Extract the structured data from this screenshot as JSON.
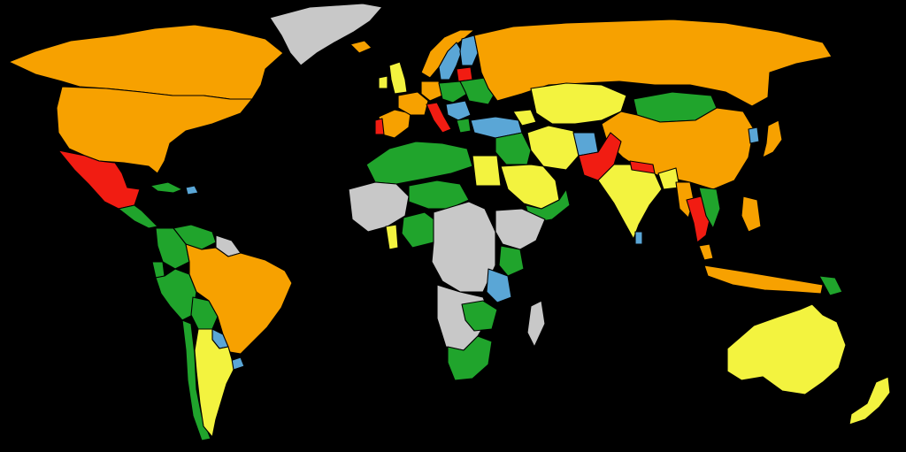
{
  "map": {
    "background_color": "#000000",
    "border_color": "#000000",
    "categories": {
      "orange": "#f7a100",
      "red": "#f11c12",
      "yellow": "#f3f33f",
      "green": "#20a42c",
      "blue": "#5aa6d6",
      "grey": "#c8c8c8"
    },
    "regions": [
      {
        "id": "canada-alaska",
        "category": "orange"
      },
      {
        "id": "usa",
        "category": "orange"
      },
      {
        "id": "greenland",
        "category": "grey"
      },
      {
        "id": "mexico",
        "category": "red"
      },
      {
        "id": "central-america",
        "category": "green"
      },
      {
        "id": "cuba",
        "category": "green"
      },
      {
        "id": "caribbean-islands",
        "category": "blue"
      },
      {
        "id": "colombia",
        "category": "green"
      },
      {
        "id": "venezuela",
        "category": "green"
      },
      {
        "id": "guianas",
        "category": "grey"
      },
      {
        "id": "ecuador",
        "category": "green"
      },
      {
        "id": "peru",
        "category": "green"
      },
      {
        "id": "brazil",
        "category": "orange"
      },
      {
        "id": "bolivia",
        "category": "green"
      },
      {
        "id": "paraguay",
        "category": "blue"
      },
      {
        "id": "uruguay",
        "category": "blue"
      },
      {
        "id": "argentina",
        "category": "yellow"
      },
      {
        "id": "chile",
        "category": "green"
      },
      {
        "id": "iceland",
        "category": "orange"
      },
      {
        "id": "uk",
        "category": "yellow"
      },
      {
        "id": "ireland",
        "category": "yellow"
      },
      {
        "id": "norway",
        "category": "orange"
      },
      {
        "id": "sweden",
        "category": "blue"
      },
      {
        "id": "finland",
        "category": "blue"
      },
      {
        "id": "baltics",
        "category": "red"
      },
      {
        "id": "russia",
        "category": "orange"
      },
      {
        "id": "iberia",
        "category": "orange"
      },
      {
        "id": "portugal",
        "category": "red"
      },
      {
        "id": "france",
        "category": "orange"
      },
      {
        "id": "central-europe",
        "category": "green"
      },
      {
        "id": "germany",
        "category": "orange"
      },
      {
        "id": "italy",
        "category": "red"
      },
      {
        "id": "balkans",
        "category": "blue"
      },
      {
        "id": "greece",
        "category": "green"
      },
      {
        "id": "eastern-europe",
        "category": "green"
      },
      {
        "id": "turkey",
        "category": "blue"
      },
      {
        "id": "caucasus",
        "category": "yellow"
      },
      {
        "id": "kazakhstan-central-asia",
        "category": "yellow"
      },
      {
        "id": "mongolia",
        "category": "green"
      },
      {
        "id": "china",
        "category": "orange"
      },
      {
        "id": "korea",
        "category": "blue"
      },
      {
        "id": "japan",
        "category": "orange"
      },
      {
        "id": "iran",
        "category": "yellow"
      },
      {
        "id": "afghanistan",
        "category": "blue"
      },
      {
        "id": "pakistan",
        "category": "red"
      },
      {
        "id": "india",
        "category": "yellow"
      },
      {
        "id": "nepal",
        "category": "red"
      },
      {
        "id": "sri-lanka",
        "category": "blue"
      },
      {
        "id": "bangladesh",
        "category": "yellow"
      },
      {
        "id": "myanmar",
        "category": "orange"
      },
      {
        "id": "thailand",
        "category": "red"
      },
      {
        "id": "indochina",
        "category": "green"
      },
      {
        "id": "malaysia",
        "category": "orange"
      },
      {
        "id": "philippines",
        "category": "orange"
      },
      {
        "id": "indonesia",
        "category": "orange"
      },
      {
        "id": "papua-new-guinea",
        "category": "green"
      },
      {
        "id": "australia",
        "category": "yellow"
      },
      {
        "id": "new-zealand",
        "category": "yellow"
      },
      {
        "id": "middle-east",
        "category": "green"
      },
      {
        "id": "saudi-arabia",
        "category": "yellow"
      },
      {
        "id": "yemen-oman",
        "category": "green"
      },
      {
        "id": "north-africa",
        "category": "green"
      },
      {
        "id": "egypt",
        "category": "yellow"
      },
      {
        "id": "west-africa",
        "category": "grey"
      },
      {
        "id": "ghana",
        "category": "yellow"
      },
      {
        "id": "sahel",
        "category": "green"
      },
      {
        "id": "nigeria",
        "category": "green"
      },
      {
        "id": "central-africa",
        "category": "grey"
      },
      {
        "id": "horn-of-africa",
        "category": "grey"
      },
      {
        "id": "kenya",
        "category": "green"
      },
      {
        "id": "tanzania",
        "category": "blue"
      },
      {
        "id": "southern-africa",
        "category": "grey"
      },
      {
        "id": "zambia-zimbabwe",
        "category": "green"
      },
      {
        "id": "south-africa",
        "category": "green"
      },
      {
        "id": "madagascar",
        "category": "grey"
      }
    ]
  }
}
